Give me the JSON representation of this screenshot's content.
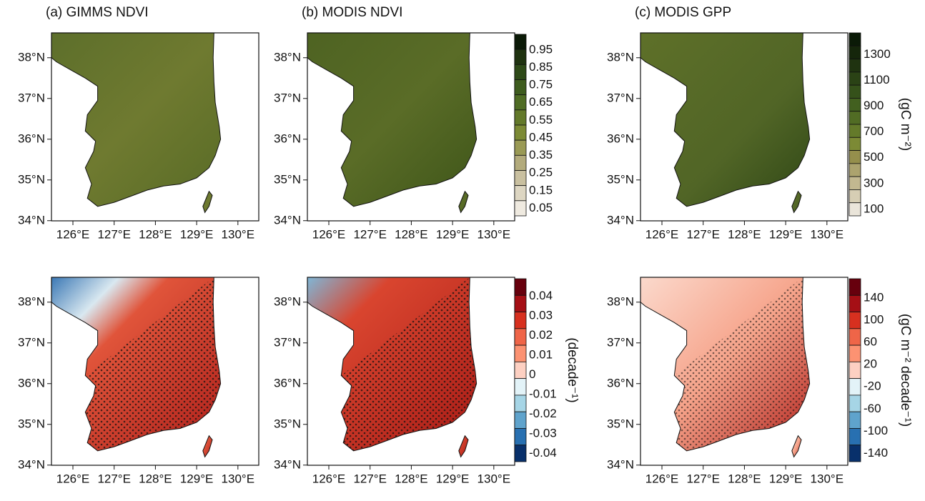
{
  "panels": [
    {
      "title": "(a) GIMMS NDVI"
    },
    {
      "title": "(b) MODIS NDVI"
    },
    {
      "title": "(c) MODIS GPP"
    }
  ],
  "lat_labels": [
    "38°N",
    "37°N",
    "36°N",
    "35°N",
    "34°N"
  ],
  "lon_labels": [
    "126°E",
    "127°E",
    "128°E",
    "129°E",
    "130°E"
  ],
  "colorbars": [
    {
      "unit": null,
      "labels": [
        "0.95",
        "0.85",
        "0.75",
        "0.65",
        "0.55",
        "0.45",
        "0.35",
        "0.25",
        "0.15",
        "0.05"
      ],
      "colors": [
        "#0b1a07",
        "#1f3310",
        "#2e4a18",
        "#3e5c1e",
        "#4f6c24",
        "#63792a",
        "#7c8a35",
        "#9a9a55",
        "#b3ab7c",
        "#c9c0a0",
        "#ddd6c2",
        "#efeae0"
      ]
    },
    {
      "unit": "(gC m⁻²)",
      "labels": [
        "1300",
        "1100",
        "900",
        "700",
        "500",
        "300",
        "100"
      ],
      "colors": [
        "#0b1a07",
        "#15260b",
        "#1f3310",
        "#2a4215",
        "#35511a",
        "#42601f",
        "#516c24",
        "#647a2a",
        "#7c8a35",
        "#958f4c",
        "#aca36e",
        "#c2b890",
        "#d6ceb4",
        "#eae5da"
      ]
    },
    {
      "unit": "(decade⁻¹)",
      "labels": [
        "0.04",
        "0.03",
        "0.02",
        "0.01",
        "0",
        "-0.01",
        "-0.02",
        "-0.03",
        "-0.04"
      ],
      "colors": [
        "#67000d",
        "#a50f15",
        "#d7301f",
        "#ef6548",
        "#fc9272",
        "#fdd0c2",
        "#e3f3f8",
        "#a6d5e6",
        "#5fa3cc",
        "#2870b1",
        "#08306b"
      ]
    },
    {
      "unit": "(gC m⁻² decade⁻¹)",
      "labels": [
        "140",
        "100",
        "60",
        "20",
        "-20",
        "-60",
        "-100",
        "-140"
      ],
      "colors": [
        "#67000d",
        "#a50f15",
        "#d7301f",
        "#ef6548",
        "#fc9272",
        "#fdd0c2",
        "#e3f3f8",
        "#a6d5e6",
        "#5fa3cc",
        "#2870b1",
        "#08306b"
      ]
    }
  ]
}
